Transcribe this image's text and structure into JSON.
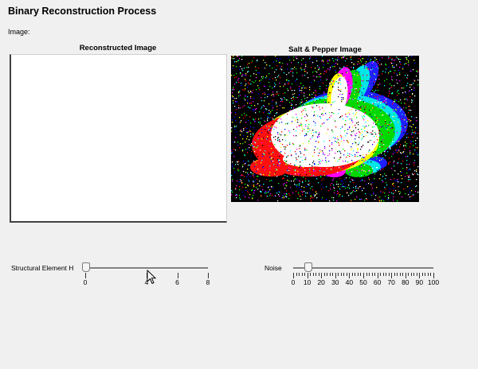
{
  "app": {
    "title": "Binary Reconstruction Process",
    "image_label": "Image:"
  },
  "panels": {
    "reconstructed_title": "Reconstructed Image",
    "salt_pepper_title": "Salt & Pepper Image"
  },
  "controls": {
    "structural_element": {
      "label": "Structural Element H",
      "min": 0,
      "max": 8,
      "value": 0,
      "ticks": [
        "0",
        "4",
        "6",
        "8"
      ]
    },
    "noise": {
      "label": "Noise",
      "min": 0,
      "max": 100,
      "value": 10,
      "ticks": [
        "0",
        "10",
        "20",
        "30",
        "40",
        "50",
        "60",
        "70",
        "80",
        "90",
        "100"
      ]
    }
  },
  "colors": {
    "background": "#f0f0f0",
    "image_background": "#000000",
    "rabbit_fill": "#ffffff"
  },
  "icons": {
    "cursor": "mouse-pointer-icon"
  }
}
